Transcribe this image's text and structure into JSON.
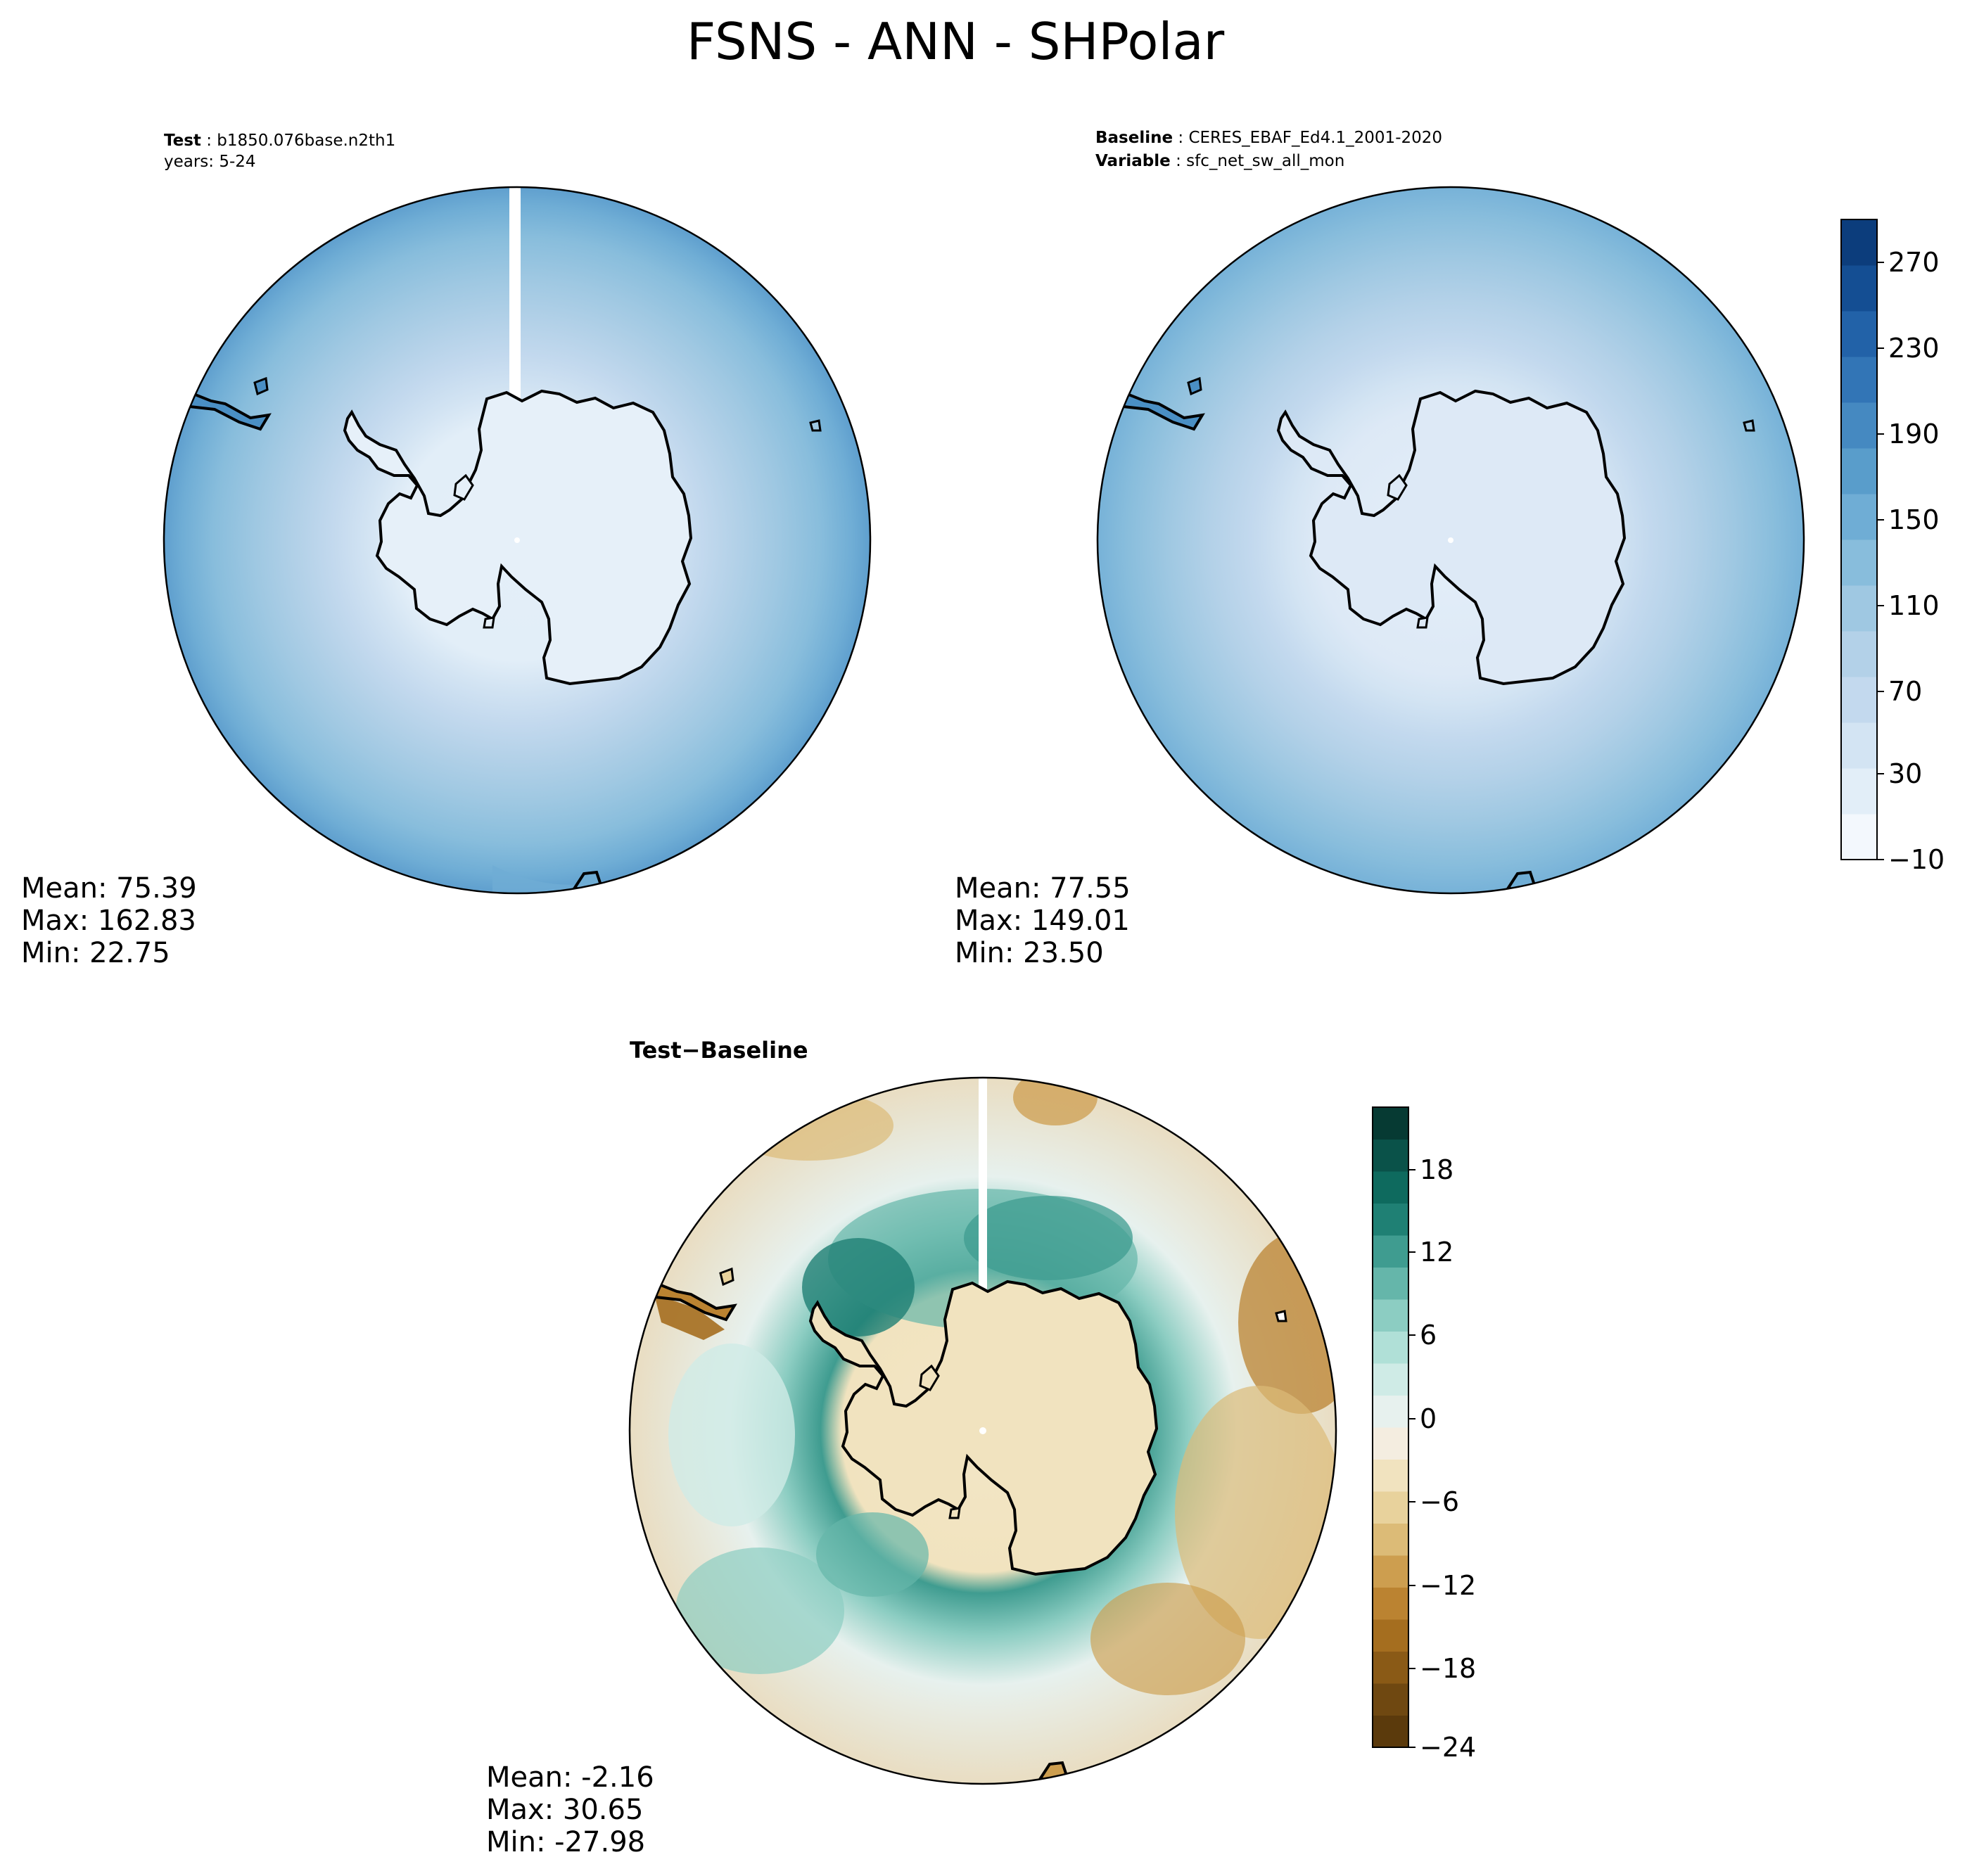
{
  "title": "FSNS - ANN - SHPolar",
  "test_panel": {
    "label_key": "Test",
    "label_value": "b1850.076base.n2th1",
    "years": "years: 5-24",
    "stats": {
      "mean": "Mean: 75.39",
      "max": "Max: 162.83",
      "min": "Min: 22.75"
    }
  },
  "baseline_panel": {
    "label_key": "Baseline",
    "label_value": "CERES_EBAF_Ed4.1_2001-2020",
    "variable_key": "Variable",
    "variable_value": "sfc_net_sw_all_mon",
    "stats": {
      "mean": "Mean: 77.55",
      "max": "Max: 149.01",
      "min": "Min: 23.50"
    }
  },
  "diff_panel": {
    "title_a": "Test",
    "title_sep": "−",
    "title_b": "Baseline",
    "stats": {
      "mean": "Mean: -2.16",
      "max": "Max: 30.65",
      "min": "Min: -27.98"
    }
  },
  "colorbar_main": {
    "tick_labels": [
      "270",
      "230",
      "190",
      "150",
      "110",
      "70",
      "30",
      "−10"
    ],
    "colors": [
      "#f3f8fd",
      "#e2eef8",
      "#d3e4f3",
      "#c3d9ee",
      "#b3d1e8",
      "#9fc8e2",
      "#88bddc",
      "#6fadd5",
      "#599dcb",
      "#4589c1",
      "#3275b6",
      "#2262a8",
      "#144e93",
      "#0c3d7c"
    ]
  },
  "colorbar_diff": {
    "tick_labels": [
      "18",
      "12",
      "6",
      "0",
      "−6",
      "−12",
      "−18",
      "−24"
    ],
    "colors": [
      "#5b3a0c",
      "#6f4811",
      "#8a5a16",
      "#a56e1f",
      "#bb8331",
      "#cd9e4f",
      "#dcbb77",
      "#e8d29c",
      "#f1e3bf",
      "#f4ede0",
      "#e7f1ee",
      "#cfebe6",
      "#b0e0d7",
      "#8ccdc2",
      "#65b6aa",
      "#3f9c90",
      "#1f8074",
      "#0e6a5e",
      "#0a5249",
      "#063a33"
    ]
  }
}
